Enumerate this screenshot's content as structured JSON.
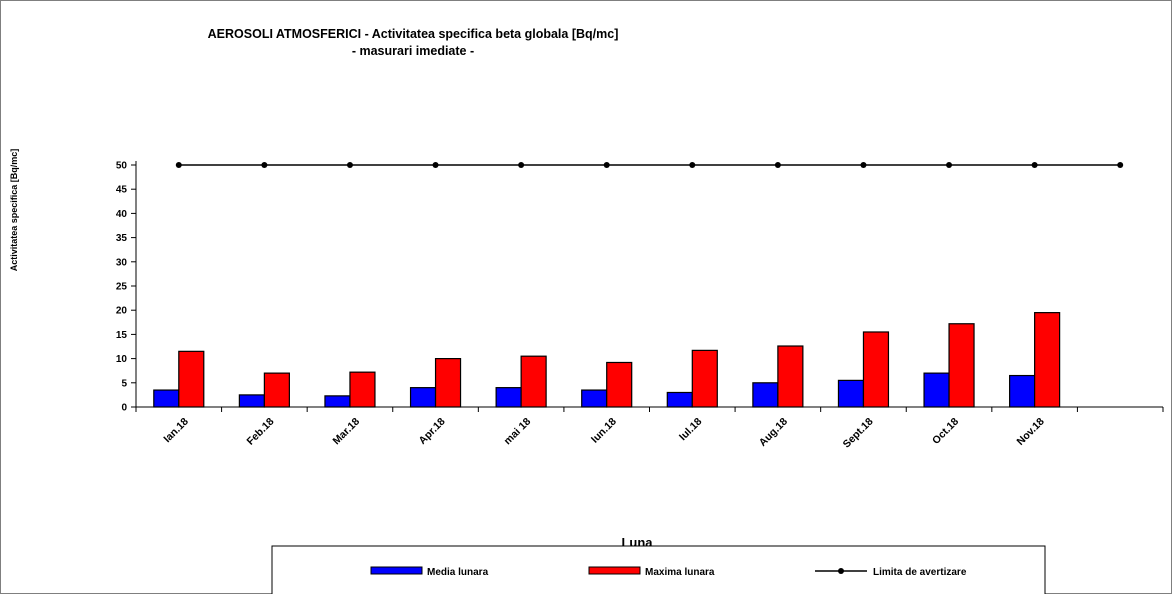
{
  "chart_data": {
    "type": "bar",
    "title": "AEROSOLI  ATMOSFERICI - Activitatea specifica beta globala [Bq/mc]",
    "subtitle": "- masurari imediate -",
    "xlabel": "Luna",
    "ylabel": "Activitatea  specifica  [Bq/mc]",
    "ylim": [
      0,
      50
    ],
    "yticks": [
      0,
      5,
      10,
      15,
      20,
      25,
      30,
      35,
      40,
      45,
      50
    ],
    "categories": [
      "Ian.18",
      "Feb.18",
      "Mar.18",
      "Apr.18",
      "mai 18",
      "Iun.18",
      "Iul.18",
      "Aug.18",
      "Sept.18",
      "Oct.18",
      "Nov.18",
      ""
    ],
    "series": [
      {
        "name": "Media lunara",
        "kind": "bar",
        "color": "#0000ff",
        "values": [
          3.5,
          2.5,
          2.3,
          4.0,
          4.0,
          3.5,
          3.0,
          5.0,
          5.5,
          7.0,
          6.5,
          null
        ]
      },
      {
        "name": "Maxima lunara",
        "kind": "bar",
        "color": "#ff0000",
        "values": [
          11.5,
          7.0,
          7.2,
          10.0,
          10.5,
          9.2,
          11.7,
          12.6,
          15.5,
          17.2,
          19.5,
          null
        ]
      },
      {
        "name": "Limita de avertizare",
        "kind": "line",
        "color": "#000000",
        "values": [
          50,
          50,
          50,
          50,
          50,
          50,
          50,
          50,
          50,
          50,
          50,
          50
        ]
      }
    ],
    "grid": false,
    "legend": "bottom"
  }
}
